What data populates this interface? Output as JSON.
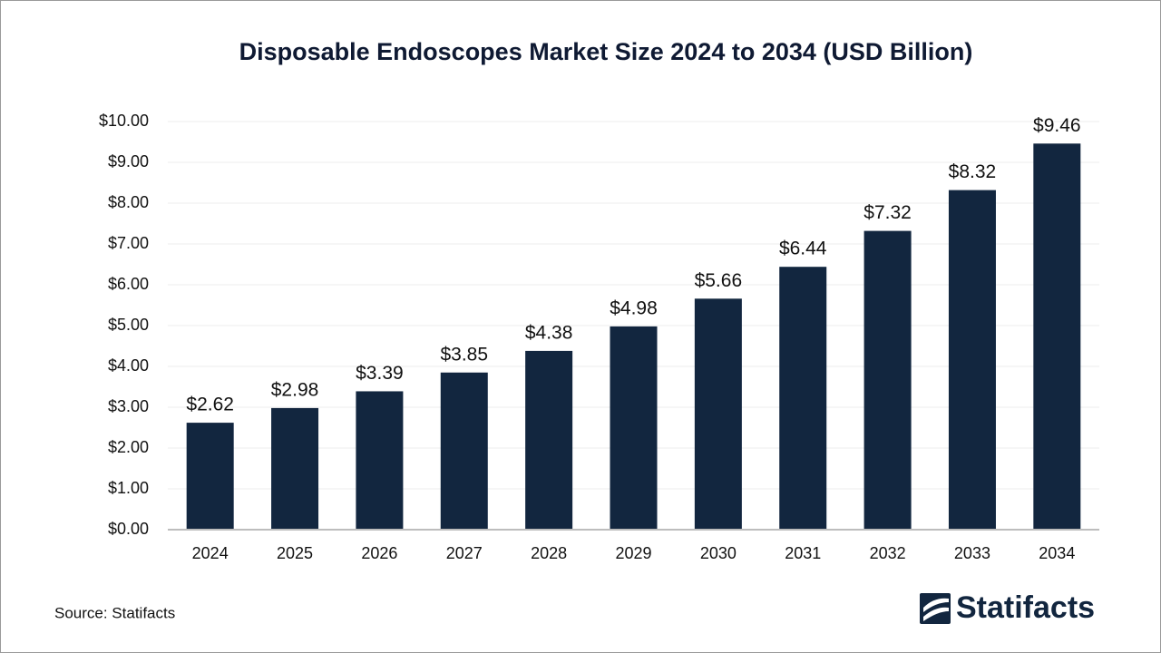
{
  "chart_data": {
    "type": "bar",
    "title": "Disposable Endoscopes Market Size 2024 to 2034 (USD Billion)",
    "categories": [
      "2024",
      "2025",
      "2026",
      "2027",
      "2028",
      "2029",
      "2030",
      "2031",
      "2032",
      "2033",
      "2034"
    ],
    "values": [
      2.62,
      2.98,
      3.39,
      3.85,
      4.38,
      4.98,
      5.66,
      6.44,
      7.32,
      8.32,
      9.46
    ],
    "value_labels": [
      "$2.62",
      "$2.98",
      "$3.39",
      "$3.85",
      "$4.38",
      "$4.98",
      "$5.66",
      "$6.44",
      "$7.32",
      "$8.32",
      "$9.46"
    ],
    "color": "#12263f",
    "ylim": [
      0,
      10
    ],
    "yticks": [
      {
        "value": 0,
        "label": "$0.00"
      },
      {
        "value": 1,
        "label": "$1.00"
      },
      {
        "value": 2,
        "label": "$2.00"
      },
      {
        "value": 3,
        "label": "$3.00"
      },
      {
        "value": 4,
        "label": "$4.00"
      },
      {
        "value": 5,
        "label": "$5.00"
      },
      {
        "value": 6,
        "label": "$6.00"
      },
      {
        "value": 7,
        "label": "$7.00"
      },
      {
        "value": 8,
        "label": "$8.00"
      },
      {
        "value": 9,
        "label": "$9.00"
      },
      {
        "value": 10,
        "label": "$10.00"
      }
    ],
    "grid": true,
    "source": "Source: Statifacts",
    "logo": "Statifacts"
  }
}
